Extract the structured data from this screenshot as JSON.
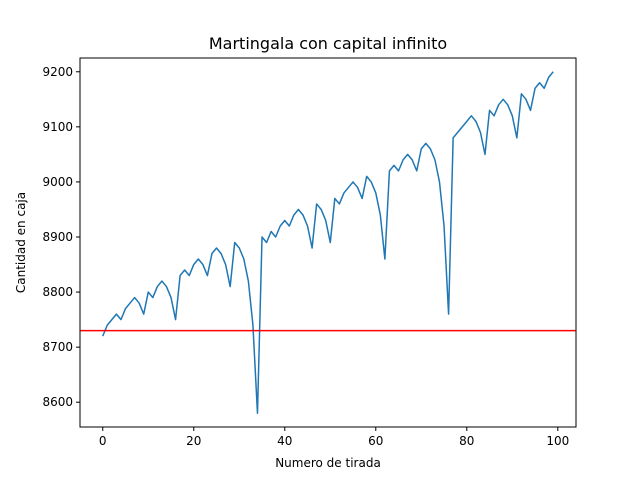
{
  "chart_data": {
    "type": "line",
    "title": "Martingala con capital infinito",
    "xlabel": "Numero de tirada",
    "ylabel": "Cantidad en caja",
    "xlim": [
      -5,
      104
    ],
    "ylim": [
      8555,
      9225
    ],
    "xticks": [
      0,
      20,
      40,
      60,
      80,
      100
    ],
    "yticks": [
      8600,
      8700,
      8800,
      8900,
      9000,
      9100,
      9200
    ],
    "grid": false,
    "series": [
      {
        "color": "#1f77b4",
        "x": [
          0,
          1,
          2,
          3,
          4,
          5,
          6,
          7,
          8,
          9,
          10,
          11,
          12,
          13,
          14,
          15,
          16,
          17,
          18,
          19,
          20,
          21,
          22,
          23,
          24,
          25,
          26,
          27,
          28,
          29,
          30,
          31,
          32,
          33,
          34,
          35,
          36,
          37,
          38,
          39,
          40,
          41,
          42,
          43,
          44,
          45,
          46,
          47,
          48,
          49,
          50,
          51,
          52,
          53,
          54,
          55,
          56,
          57,
          58,
          59,
          60,
          61,
          62,
          63,
          64,
          65,
          66,
          67,
          68,
          69,
          70,
          71,
          72,
          73,
          74,
          75,
          76,
          77,
          78,
          79,
          80,
          81,
          82,
          83,
          84,
          85,
          86,
          87,
          88,
          89,
          90,
          91,
          92,
          93,
          94,
          95,
          96,
          97,
          98,
          99
        ],
        "y": [
          8720,
          8740,
          8750,
          8760,
          8750,
          8770,
          8780,
          8790,
          8780,
          8760,
          8800,
          8790,
          8810,
          8820,
          8810,
          8790,
          8750,
          8830,
          8840,
          8830,
          8850,
          8860,
          8850,
          8830,
          8870,
          8880,
          8870,
          8850,
          8810,
          8890,
          8880,
          8860,
          8820,
          8740,
          8580,
          8900,
          8890,
          8910,
          8900,
          8920,
          8930,
          8920,
          8940,
          8950,
          8940,
          8920,
          8880,
          8960,
          8950,
          8930,
          8890,
          8970,
          8960,
          8980,
          8990,
          9000,
          8990,
          8970,
          9010,
          9000,
          8980,
          8940,
          8860,
          9020,
          9030,
          9020,
          9040,
          9050,
          9040,
          9020,
          9060,
          9070,
          9060,
          9040,
          9000,
          8920,
          8760,
          9080,
          9090,
          9100,
          9110,
          9120,
          9110,
          9090,
          9050,
          9130,
          9120,
          9140,
          9150,
          9140,
          9120,
          9080,
          9160,
          9150,
          9130,
          9170,
          9180,
          9170,
          9190,
          9200
        ]
      }
    ],
    "hline": {
      "y": 8730,
      "color": "#ff0000"
    }
  }
}
